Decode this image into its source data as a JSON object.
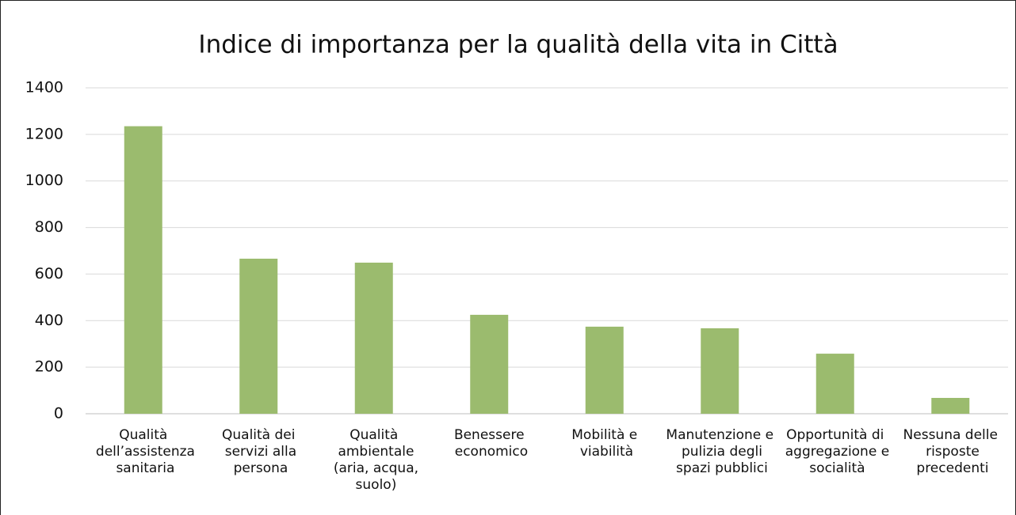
{
  "chart_data": {
    "type": "bar",
    "title": "Indice di importanza per la qualità della vita in Città",
    "categories": [
      "Qualità dell’assistenza sanitaria",
      "Qualità dei servizi alla persona",
      "Qualità ambientale (aria, acqua, suolo)",
      "Benessere economico",
      "Mobilità e viabilità",
      "Manutenzione e pulizia degli spazi pubblici",
      "Opportunità di aggregazione e socialità",
      "Nessuna delle risposte precedenti"
    ],
    "values": [
      1235,
      666,
      649,
      425,
      374,
      367,
      258,
      68
    ],
    "color": "#9bbb6e",
    "ylim": [
      0,
      1400
    ],
    "yticks": [
      0,
      200,
      400,
      600,
      800,
      1000,
      1200,
      1400
    ],
    "grid": true
  }
}
